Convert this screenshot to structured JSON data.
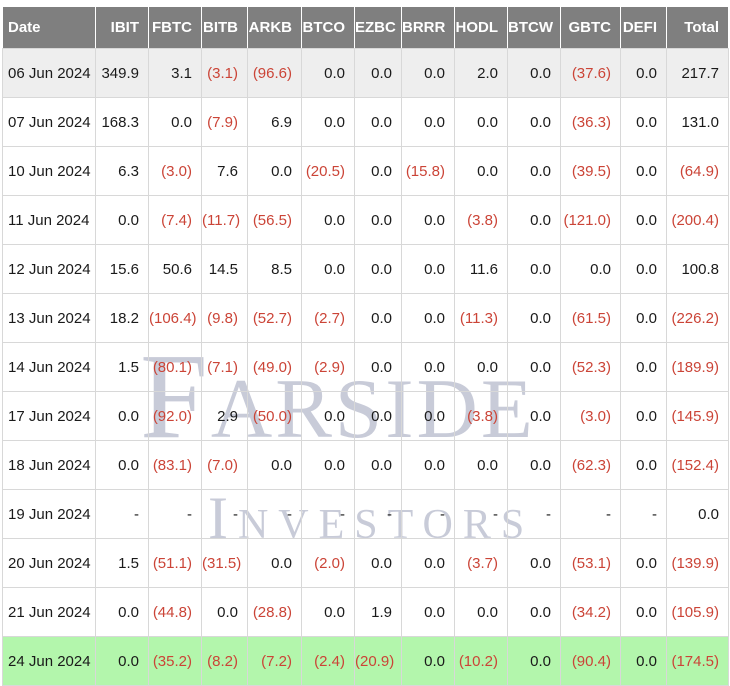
{
  "watermark": {
    "line1": "Farside",
    "line2": "Investors"
  },
  "colors": {
    "header_bg": "#7f7f7f",
    "grid": "#d8d8d8",
    "neg": "#cb4437",
    "pos": "#1a1a1a",
    "stripe": "#eeeeee",
    "green": "#b3f6ac",
    "watermark": "#c8cbd8",
    "page_bg": "#ffffff"
  },
  "table": {
    "columns": [
      "Date",
      "IBIT",
      "FBTC",
      "BITB",
      "ARKB",
      "BTCO",
      "EZBC",
      "BRRR",
      "HODL",
      "BTCW",
      "GBTC",
      "DEFI",
      "Total"
    ],
    "rows": [
      {
        "date": "06 Jun 2024",
        "highlight": "gray",
        "values": [
          "349.9",
          "3.1",
          "(3.1)",
          "(96.6)",
          "0.0",
          "0.0",
          "0.0",
          "2.0",
          "0.0",
          "(37.6)",
          "0.0",
          "217.7"
        ]
      },
      {
        "date": "07 Jun 2024",
        "highlight": "none",
        "values": [
          "168.3",
          "0.0",
          "(7.9)",
          "6.9",
          "0.0",
          "0.0",
          "0.0",
          "0.0",
          "0.0",
          "(36.3)",
          "0.0",
          "131.0"
        ]
      },
      {
        "date": "10 Jun 2024",
        "highlight": "none",
        "values": [
          "6.3",
          "(3.0)",
          "7.6",
          "0.0",
          "(20.5)",
          "0.0",
          "(15.8)",
          "0.0",
          "0.0",
          "(39.5)",
          "0.0",
          "(64.9)"
        ]
      },
      {
        "date": "11 Jun 2024",
        "highlight": "none",
        "values": [
          "0.0",
          "(7.4)",
          "(11.7)",
          "(56.5)",
          "0.0",
          "0.0",
          "0.0",
          "(3.8)",
          "0.0",
          "(121.0)",
          "0.0",
          "(200.4)"
        ]
      },
      {
        "date": "12 Jun 2024",
        "highlight": "none",
        "values": [
          "15.6",
          "50.6",
          "14.5",
          "8.5",
          "0.0",
          "0.0",
          "0.0",
          "11.6",
          "0.0",
          "0.0",
          "0.0",
          "100.8"
        ]
      },
      {
        "date": "13 Jun 2024",
        "highlight": "none",
        "values": [
          "18.2",
          "(106.4)",
          "(9.8)",
          "(52.7)",
          "(2.7)",
          "0.0",
          "0.0",
          "(11.3)",
          "0.0",
          "(61.5)",
          "0.0",
          "(226.2)"
        ]
      },
      {
        "date": "14 Jun 2024",
        "highlight": "none",
        "values": [
          "1.5",
          "(80.1)",
          "(7.1)",
          "(49.0)",
          "(2.9)",
          "0.0",
          "0.0",
          "0.0",
          "0.0",
          "(52.3)",
          "0.0",
          "(189.9)"
        ]
      },
      {
        "date": "17 Jun 2024",
        "highlight": "none",
        "values": [
          "0.0",
          "(92.0)",
          "2.9",
          "(50.0)",
          "0.0",
          "0.0",
          "0.0",
          "(3.8)",
          "0.0",
          "(3.0)",
          "0.0",
          "(145.9)"
        ]
      },
      {
        "date": "18 Jun 2024",
        "highlight": "none",
        "values": [
          "0.0",
          "(83.1)",
          "(7.0)",
          "0.0",
          "0.0",
          "0.0",
          "0.0",
          "0.0",
          "0.0",
          "(62.3)",
          "0.0",
          "(152.4)"
        ]
      },
      {
        "date": "19 Jun 2024",
        "highlight": "none",
        "values": [
          "-",
          "-",
          "-",
          "-",
          "-",
          "-",
          "-",
          "-",
          "-",
          "-",
          "-",
          "0.0"
        ]
      },
      {
        "date": "20 Jun 2024",
        "highlight": "none",
        "values": [
          "1.5",
          "(51.1)",
          "(31.5)",
          "0.0",
          "(2.0)",
          "0.0",
          "0.0",
          "(3.7)",
          "0.0",
          "(53.1)",
          "0.0",
          "(139.9)"
        ]
      },
      {
        "date": "21 Jun 2024",
        "highlight": "none",
        "values": [
          "0.0",
          "(44.8)",
          "0.0",
          "(28.8)",
          "0.0",
          "1.9",
          "0.0",
          "0.0",
          "0.0",
          "(34.2)",
          "0.0",
          "(105.9)"
        ]
      },
      {
        "date": "24 Jun 2024",
        "highlight": "green",
        "values": [
          "0.0",
          "(35.2)",
          "(8.2)",
          "(7.2)",
          "(2.4)",
          "(20.9)",
          "0.0",
          "(10.2)",
          "0.0",
          "(90.4)",
          "0.0",
          "(174.5)"
        ]
      }
    ]
  }
}
